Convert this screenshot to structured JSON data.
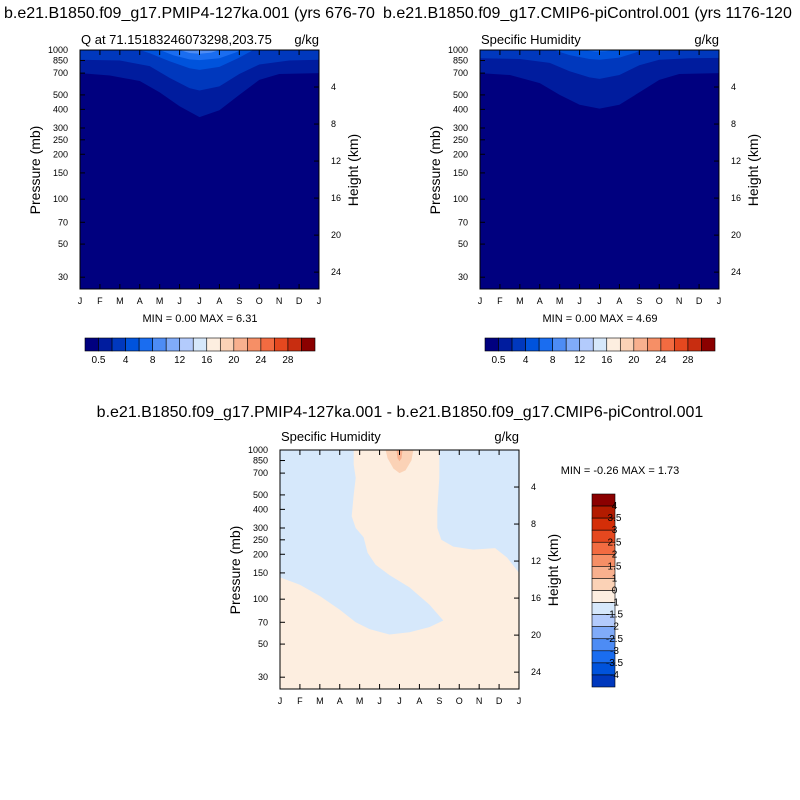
{
  "chart_data": [
    {
      "type": "heatmap",
      "title": "b.e21.B1850.f09_g17.PMIP4-127ka.001 (yrs 676-70",
      "left_label": "Q at 71.15183246073298,203.75",
      "right_label": "g/kg",
      "stats": "MIN =   0.00 MAX =   6.31",
      "xlabel": "",
      "ylabel": "Pressure (mb)",
      "ylabel_right": "Height (km)",
      "x_ticks": [
        "J",
        "F",
        "M",
        "A",
        "M",
        "J",
        "J",
        "A",
        "S",
        "O",
        "N",
        "D",
        "J"
      ],
      "y_ticks": [
        30,
        50,
        70,
        100,
        150,
        200,
        250,
        300,
        400,
        500,
        700,
        850,
        1000
      ],
      "y_ticks_right": [
        24,
        20,
        16,
        12,
        8,
        4
      ],
      "ylim": [
        1000,
        25
      ],
      "xlim": [
        0,
        12
      ],
      "colorbar_labels": [
        "0.5",
        "4",
        "8",
        "12",
        "16",
        "20",
        "24",
        "28"
      ],
      "colors": [
        "#00007f",
        "#001c9e",
        "#0038bd",
        "#0053dc",
        "#1a6df0",
        "#4d8cf5",
        "#80abf9",
        "#b3cbfc",
        "#d6e8fb",
        "#fdeee0",
        "#fbd2b6",
        "#f8b08e",
        "#f68f66",
        "#f26b41",
        "#e5481f",
        "#c82d10",
        "#8b0000"
      ],
      "contours": [
        {
          "level": 0.5,
          "color_index": 1,
          "points": [
            [
              0,
              1000
            ],
            [
              0,
              700
            ],
            [
              1.5,
              675
            ],
            [
              3,
              620
            ],
            [
              4,
              520
            ],
            [
              5,
              420
            ],
            [
              6,
              355
            ],
            [
              7,
              395
            ],
            [
              8,
              500
            ],
            [
              9,
              630
            ],
            [
              10,
              690
            ],
            [
              12,
              700
            ],
            [
              12,
              1000
            ]
          ]
        },
        {
          "level": 1.0,
          "color_index": 2,
          "points": [
            [
              0,
              1000
            ],
            [
              0,
              860
            ],
            [
              2,
              850
            ],
            [
              3.5,
              780
            ],
            [
              4.5,
              650
            ],
            [
              5.5,
              555
            ],
            [
              6,
              535
            ],
            [
              7,
              570
            ],
            [
              8,
              690
            ],
            [
              9,
              800
            ],
            [
              10.5,
              850
            ],
            [
              12,
              860
            ],
            [
              12,
              1000
            ]
          ]
        },
        {
          "level": 2.0,
          "color_index": 3,
          "points": [
            [
              3,
              1000
            ],
            [
              3.5,
              950
            ],
            [
              4.5,
              840
            ],
            [
              5.5,
              755
            ],
            [
              6,
              735
            ],
            [
              7,
              770
            ],
            [
              8,
              890
            ],
            [
              8.7,
              1000
            ]
          ]
        },
        {
          "level": 3.0,
          "color_index": 4,
          "points": [
            [
              4,
              1000
            ],
            [
              4.7,
              920
            ],
            [
              5.5,
              865
            ],
            [
              6,
              855
            ],
            [
              7,
              880
            ],
            [
              7.8,
              960
            ],
            [
              8.1,
              1000
            ]
          ]
        },
        {
          "level": 4.0,
          "color_index": 5,
          "points": [
            [
              5,
              1000
            ],
            [
              5.5,
              955
            ],
            [
              6,
              945
            ],
            [
              6.6,
              960
            ],
            [
              7,
              1000
            ]
          ]
        },
        {
          "level": 5.0,
          "color_index": 6,
          "points": [
            [
              5.7,
              1000
            ],
            [
              6,
              985
            ],
            [
              6.3,
              1000
            ]
          ]
        }
      ]
    },
    {
      "type": "heatmap",
      "title": "b.e21.B1850.f09_g17.CMIP6-piControl.001 (yrs 1176-120",
      "left_label": "Specific Humidity",
      "right_label": "g/kg",
      "stats": "MIN =   0.00 MAX =   4.69",
      "xlabel": "",
      "ylabel": "Pressure (mb)",
      "ylabel_right": "Height (km)",
      "x_ticks": [
        "J",
        "F",
        "M",
        "A",
        "M",
        "J",
        "J",
        "A",
        "S",
        "O",
        "N",
        "D",
        "J"
      ],
      "y_ticks": [
        30,
        50,
        70,
        100,
        150,
        200,
        250,
        300,
        400,
        500,
        700,
        850,
        1000
      ],
      "y_ticks_right": [
        24,
        20,
        16,
        12,
        8,
        4
      ],
      "ylim": [
        1000,
        25
      ],
      "xlim": [
        0,
        12
      ],
      "colorbar_labels": [
        "0.5",
        "4",
        "8",
        "12",
        "16",
        "20",
        "24",
        "28"
      ],
      "colors": [
        "#00007f",
        "#001c9e",
        "#0038bd",
        "#0053dc",
        "#1a6df0",
        "#4d8cf5",
        "#80abf9",
        "#b3cbfc",
        "#d6e8fb",
        "#fdeee0",
        "#fbd2b6",
        "#f8b08e",
        "#f68f66",
        "#f26b41",
        "#e5481f",
        "#c82d10",
        "#8b0000"
      ],
      "contours": [
        {
          "level": 0.5,
          "color_index": 1,
          "points": [
            [
              0,
              1000
            ],
            [
              0,
              700
            ],
            [
              1.5,
              680
            ],
            [
              3,
              600
            ],
            [
              4,
              500
            ],
            [
              5,
              430
            ],
            [
              6,
              405
            ],
            [
              7,
              430
            ],
            [
              8,
              520
            ],
            [
              9,
              630
            ],
            [
              10,
              690
            ],
            [
              12,
              700
            ],
            [
              12,
              1000
            ]
          ]
        },
        {
          "level": 1.0,
          "color_index": 2,
          "points": [
            [
              0,
              1000
            ],
            [
              0,
              880
            ],
            [
              2,
              870
            ],
            [
              3.5,
              820
            ],
            [
              4.5,
              720
            ],
            [
              5.5,
              655
            ],
            [
              6,
              640
            ],
            [
              7,
              680
            ],
            [
              8,
              790
            ],
            [
              9,
              860
            ],
            [
              10.5,
              880
            ],
            [
              12,
              885
            ],
            [
              12,
              1000
            ]
          ]
        },
        {
          "level": 2.0,
          "color_index": 3,
          "points": [
            [
              3.7,
              1000
            ],
            [
              4.5,
              925
            ],
            [
              5.5,
              870
            ],
            [
              6,
              860
            ],
            [
              7,
              890
            ],
            [
              7.8,
              960
            ],
            [
              8.1,
              1000
            ]
          ]
        },
        {
          "level": 3.0,
          "color_index": 4,
          "points": [
            [
              5.2,
              1000
            ],
            [
              5.8,
              975
            ],
            [
              6.3,
              980
            ],
            [
              6.8,
              1000
            ]
          ]
        }
      ]
    },
    {
      "type": "heatmap",
      "title": "b.e21.B1850.f09_g17.PMIP4-127ka.001 - b.e21.B1850.f09_g17.CMIP6-piControl.001",
      "left_label": "Specific Humidity",
      "right_label": "g/kg",
      "stats": "MIN = -0.26 MAX =   1.73",
      "xlabel": "",
      "ylabel": "Pressure (mb)",
      "ylabel_right": "Height (km)",
      "x_ticks": [
        "J",
        "F",
        "M",
        "A",
        "M",
        "J",
        "J",
        "A",
        "S",
        "O",
        "N",
        "D",
        "J"
      ],
      "y_ticks": [
        30,
        50,
        70,
        100,
        150,
        200,
        250,
        300,
        400,
        500,
        700,
        850,
        1000
      ],
      "y_ticks_right": [
        24,
        20,
        16,
        12,
        8,
        4
      ],
      "ylim": [
        1000,
        25
      ],
      "xlim": [
        0,
        12
      ],
      "colorbar_labels": [
        "4",
        "3.5",
        "3",
        "2.5",
        "2",
        "1.5",
        "1",
        "0",
        "-1",
        "-1.5",
        "-2",
        "-2.5",
        "-3",
        "-3.5",
        "-4"
      ],
      "colors": [
        "#8b0000",
        "#b31b00",
        "#d42e08",
        "#e5481f",
        "#f26b41",
        "#f68f66",
        "#f8b08e",
        "#fbd2b6",
        "#fdeee0",
        "#d6e8fb",
        "#b3cbfc",
        "#80abf9",
        "#4d8cf5",
        "#1a6df0",
        "#0053dc",
        "#0038bd"
      ],
      "background_color_index": 8,
      "contours": [
        {
          "level": 0,
          "color_index": 9,
          "points": [
            [
              0,
              1000
            ],
            [
              0,
              140
            ],
            [
              1,
              125
            ],
            [
              2,
              105
            ],
            [
              3,
              85
            ],
            [
              3.8,
              70
            ],
            [
              4.5,
              63
            ],
            [
              5.5,
              58
            ],
            [
              6.5,
              60
            ],
            [
              7.5,
              65
            ],
            [
              8.2,
              72
            ],
            [
              7.5,
              92
            ],
            [
              6.5,
              120
            ],
            [
              5.5,
              145
            ],
            [
              4.8,
              170
            ],
            [
              4.4,
              205
            ],
            [
              4.2,
              260
            ],
            [
              3.8,
              300
            ],
            [
              3.6,
              360
            ],
            [
              3.7,
              500
            ],
            [
              3.8,
              650
            ],
            [
              3.7,
              800
            ],
            [
              3.7,
              1000
            ]
          ]
        },
        {
          "level": 0,
          "color_index": 9,
          "points": [
            [
              8,
              1000
            ],
            [
              8,
              650
            ],
            [
              7.9,
              400
            ],
            [
              7.9,
              300
            ],
            [
              8.1,
              250
            ],
            [
              8.7,
              225
            ],
            [
              9.7,
              215
            ],
            [
              10.8,
              220
            ],
            [
              11.4,
              190
            ],
            [
              12,
              150
            ],
            [
              12,
              1000
            ]
          ]
        },
        {
          "level": 1,
          "color_index": 7,
          "points": [
            [
              5.3,
              1000
            ],
            [
              5.4,
              880
            ],
            [
              5.7,
              750
            ],
            [
              6,
              700
            ],
            [
              6.3,
              730
            ],
            [
              6.6,
              850
            ],
            [
              6.7,
              1000
            ]
          ]
        },
        {
          "level": 1.5,
          "color_index": 6,
          "points": [
            [
              5.85,
              1000
            ],
            [
              5.9,
              880
            ],
            [
              6,
              840
            ],
            [
              6.1,
              880
            ],
            [
              6.15,
              1000
            ]
          ]
        }
      ]
    }
  ]
}
